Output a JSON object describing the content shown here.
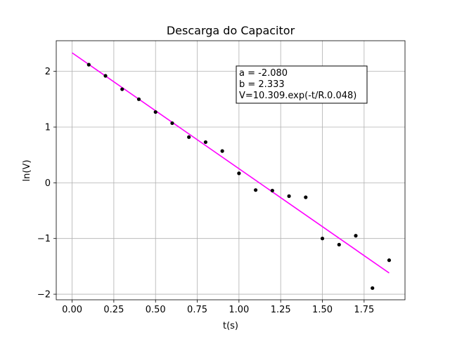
{
  "chart_data": {
    "type": "scatter",
    "title": "Descarga do Capacitor",
    "xlabel": "t(s)",
    "ylabel": "ln(V)",
    "xlim": [
      -0.095,
      1.995
    ],
    "ylim": [
      -2.1,
      2.55
    ],
    "grid": true,
    "xticks": [
      0.0,
      0.25,
      0.5,
      0.75,
      1.0,
      1.25,
      1.5,
      1.75
    ],
    "xtick_labels": [
      "0.00",
      "0.25",
      "0.50",
      "0.75",
      "1.00",
      "1.25",
      "1.50",
      "1.75"
    ],
    "yticks": [
      -2,
      -1,
      0,
      1,
      2
    ],
    "ytick_labels": [
      "−2",
      "−1",
      "0",
      "1",
      "2"
    ],
    "series": [
      {
        "kind": "points",
        "color": "#000000",
        "points": [
          [
            0.1,
            2.12
          ],
          [
            0.2,
            1.92
          ],
          [
            0.3,
            1.68
          ],
          [
            0.4,
            1.5
          ],
          [
            0.5,
            1.27
          ],
          [
            0.6,
            1.07
          ],
          [
            0.7,
            0.82
          ],
          [
            0.8,
            0.73
          ],
          [
            0.9,
            0.57
          ],
          [
            1.0,
            0.17
          ],
          [
            1.1,
            -0.13
          ],
          [
            1.2,
            -0.14
          ],
          [
            1.3,
            -0.24
          ],
          [
            1.4,
            -0.26
          ],
          [
            1.5,
            -1.0
          ],
          [
            1.6,
            -1.11
          ],
          [
            1.7,
            -0.95
          ],
          [
            1.8,
            -1.89
          ],
          [
            1.9,
            -1.39
          ]
        ]
      },
      {
        "kind": "fit_line",
        "color": "#ff00ff",
        "x": [
          0.0,
          1.9
        ],
        "slope": -2.08,
        "intercept": 2.333
      }
    ],
    "annotation": {
      "lines": [
        "a = -2.080",
        "b = 2.333",
        "V=10.309.exp(-t/R.0.048)"
      ]
    }
  }
}
